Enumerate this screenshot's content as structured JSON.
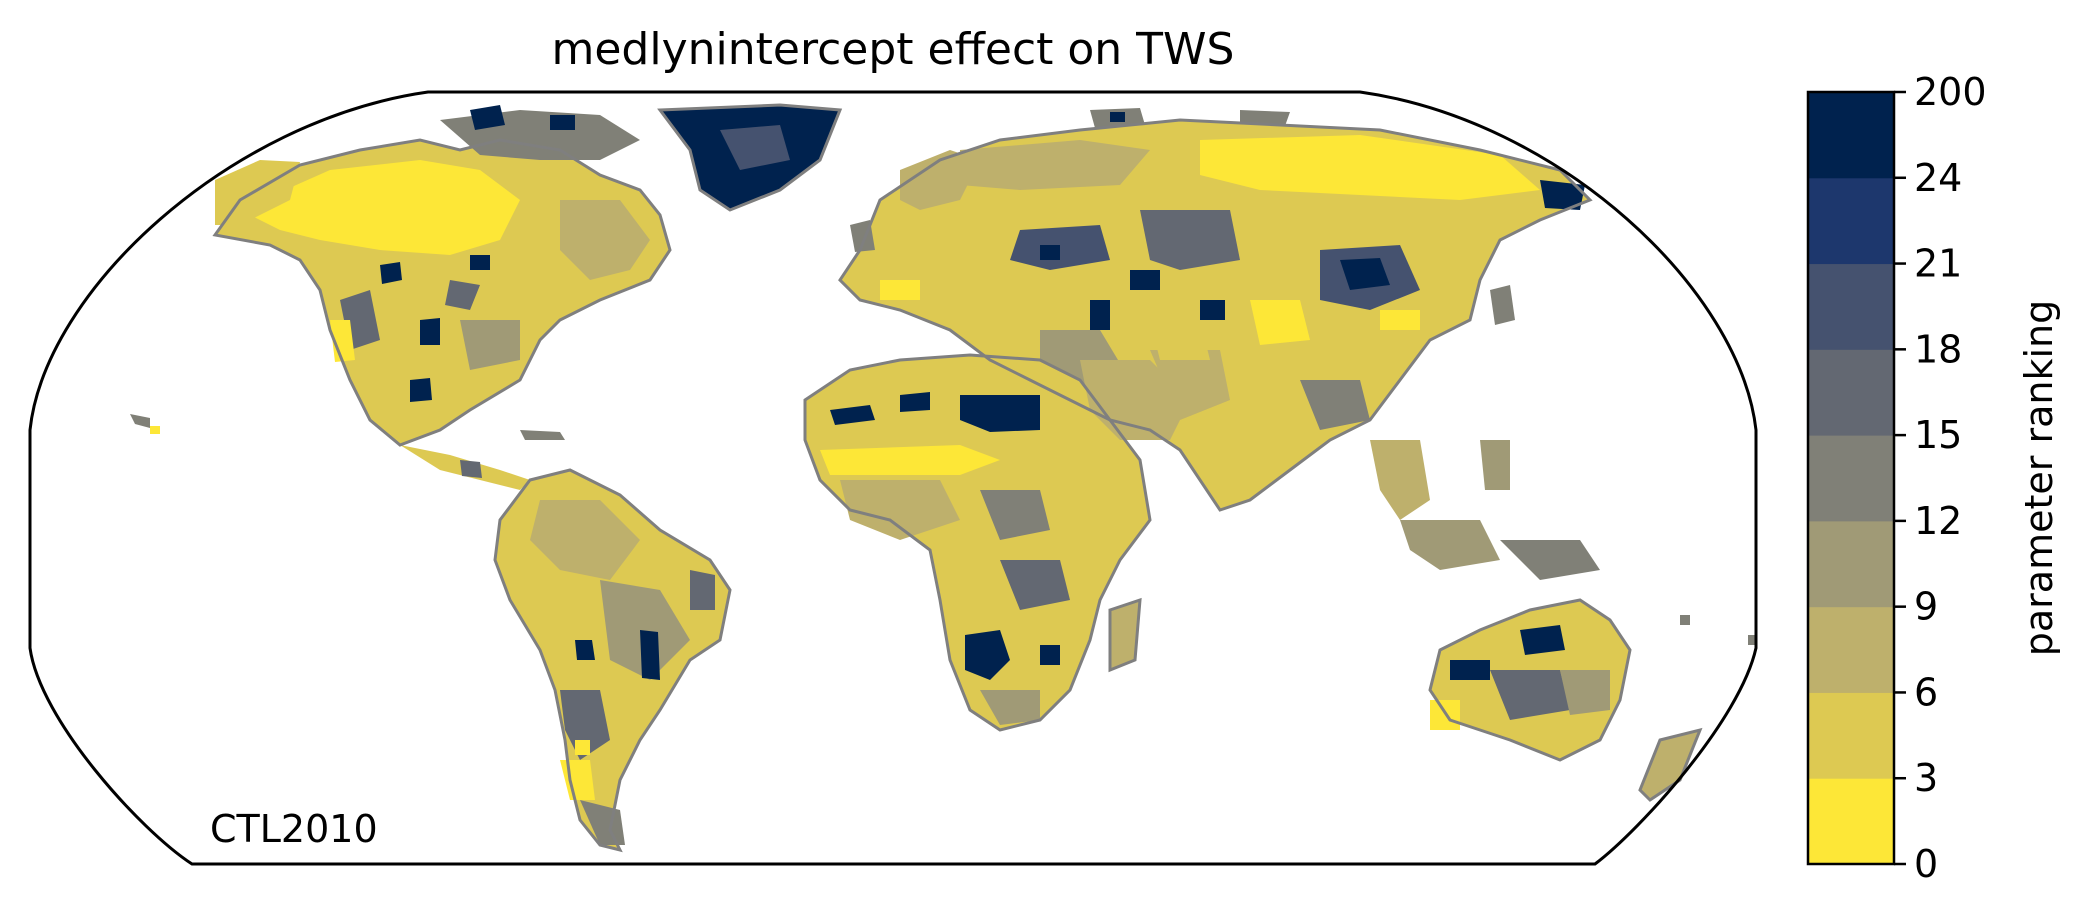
{
  "title": "medlynintercept effect on TWS",
  "map_label": "CTL2010",
  "colorbar": {
    "label": "parameter ranking",
    "ticks": [
      "0",
      "3",
      "6",
      "9",
      "12",
      "15",
      "18",
      "21",
      "24",
      "200"
    ],
    "colors": [
      "#fde737",
      "#ddc952",
      "#beb06c",
      "#a09a76",
      "#808077",
      "#636872",
      "#45526f",
      "#1d376d",
      "#00224e"
    ]
  },
  "map": {
    "projection": "Robinson",
    "coastline_color": "#7f7f7f",
    "ocean_color": "#ffffff",
    "frame_color": "#000000"
  }
}
